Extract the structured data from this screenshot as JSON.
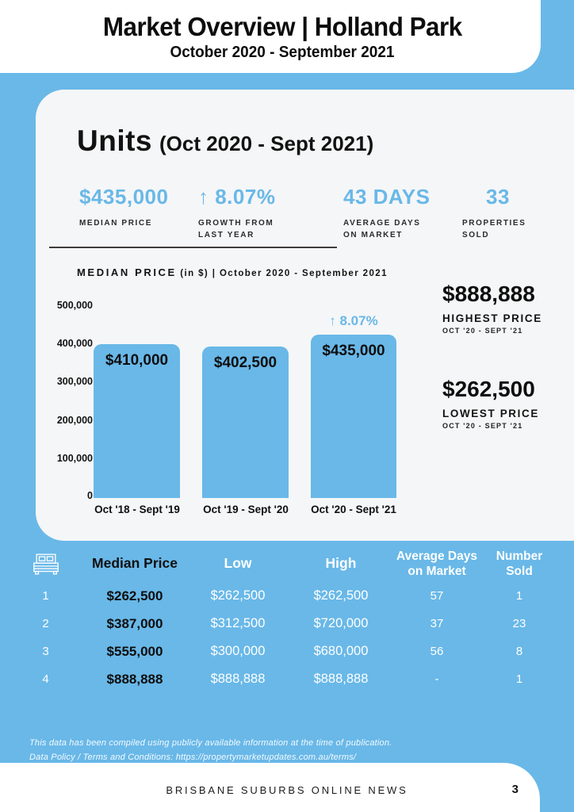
{
  "header": {
    "title": "Market Overview | Holland Park",
    "subtitle": "October 2020 - September 2021"
  },
  "units_section": {
    "title": "Units",
    "period": "(Oct 2020 - Sept 2021)",
    "stats": [
      {
        "value": "$435,000",
        "label": "MEDIAN PRICE"
      },
      {
        "value": "↑ 8.07%",
        "label": "GROWTH FROM LAST YEAR"
      },
      {
        "value": "43 DAYS",
        "label": "AVERAGE DAYS ON MARKET"
      },
      {
        "value": "33",
        "label": "PROPERTIES SOLD"
      }
    ]
  },
  "chart_data": {
    "type": "bar",
    "title_main": "MEDIAN PRICE",
    "title_rest": "(in $)  |  October 2020 - September 2021",
    "categories": [
      "Oct '18 - Sept '19",
      "Oct '19 - Sept '20",
      "Oct '20 - Sept '21"
    ],
    "values": [
      410000,
      402500,
      435000
    ],
    "bar_labels": [
      "$410,000",
      "$402,500",
      "$435,000"
    ],
    "annotation": {
      "text": "↑ 8.07%",
      "bar_index": 2
    },
    "ylim": [
      0,
      500000
    ],
    "yticks": [
      "500,000",
      "400,000",
      "300,000",
      "200,000",
      "100,000",
      "0"
    ],
    "bar_color": "#69B8E8",
    "grid": false,
    "legend": false
  },
  "highlights": {
    "highest": {
      "value": "$888,888",
      "label": "HIGHEST PRICE",
      "period": "OCT '20 - SEPT '21"
    },
    "lowest": {
      "value": "$262,500",
      "label": "LOWEST PRICE",
      "period": "OCT '20 - SEPT '21"
    }
  },
  "table": {
    "bed_icon": "bed-icon",
    "headers": {
      "median": "Median Price",
      "low": "Low",
      "high": "High",
      "days": "Average Days on Market",
      "sold": "Number Sold"
    },
    "rows": [
      {
        "beds": "1",
        "median": "$262,500",
        "low": "$262,500",
        "high": "$262,500",
        "days": "57",
        "sold": "1"
      },
      {
        "beds": "2",
        "median": "$387,000",
        "low": "$312,500",
        "high": "$720,000",
        "days": "37",
        "sold": "23"
      },
      {
        "beds": "3",
        "median": "$555,000",
        "low": "$300,000",
        "high": "$680,000",
        "days": "56",
        "sold": "8"
      },
      {
        "beds": "4",
        "median": "$888,888",
        "low": "$888,888",
        "high": "$888,888",
        "days": "-",
        "sold": "1"
      }
    ]
  },
  "disclaimer": {
    "line1": "This data has been compiled using publicly available information at the time of publication.",
    "line2": "Data Policy / Terms and Conditions: https://propertymarketupdates.com.au/terms/"
  },
  "footer": {
    "brand": "BRISBANE SUBURBS ONLINE NEWS",
    "page_number": "3"
  },
  "colors": {
    "accent_blue": "#69B8E8",
    "card_background": "#F5F6F7",
    "text_black": "#0e0e0e",
    "text_white": "#ffffff"
  }
}
